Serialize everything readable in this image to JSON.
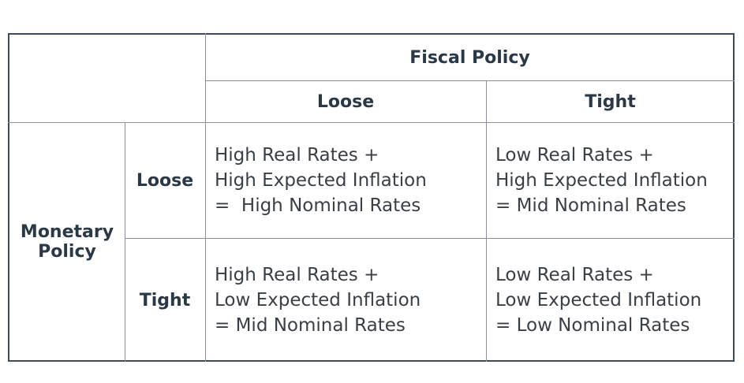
{
  "table": {
    "column_group": "Fiscal Policy",
    "columns": [
      "Loose",
      "Tight"
    ],
    "row_group": "Monetary Policy",
    "rows": [
      {
        "label": "Loose",
        "cells": [
          [
            "High Real Rates +",
            "High Expected Inflation",
            "=  High Nominal Rates"
          ],
          [
            "Low Real Rates +",
            "High Expected Inflation",
            "= Mid Nominal Rates"
          ]
        ]
      },
      {
        "label": "Tight",
        "cells": [
          [
            "High Real Rates +",
            "Low Expected Inflation",
            "= Mid Nominal Rates"
          ],
          [
            "Low Real Rates +",
            "Low Expected Inflation",
            "= Low Nominal Rates"
          ]
        ]
      }
    ]
  }
}
